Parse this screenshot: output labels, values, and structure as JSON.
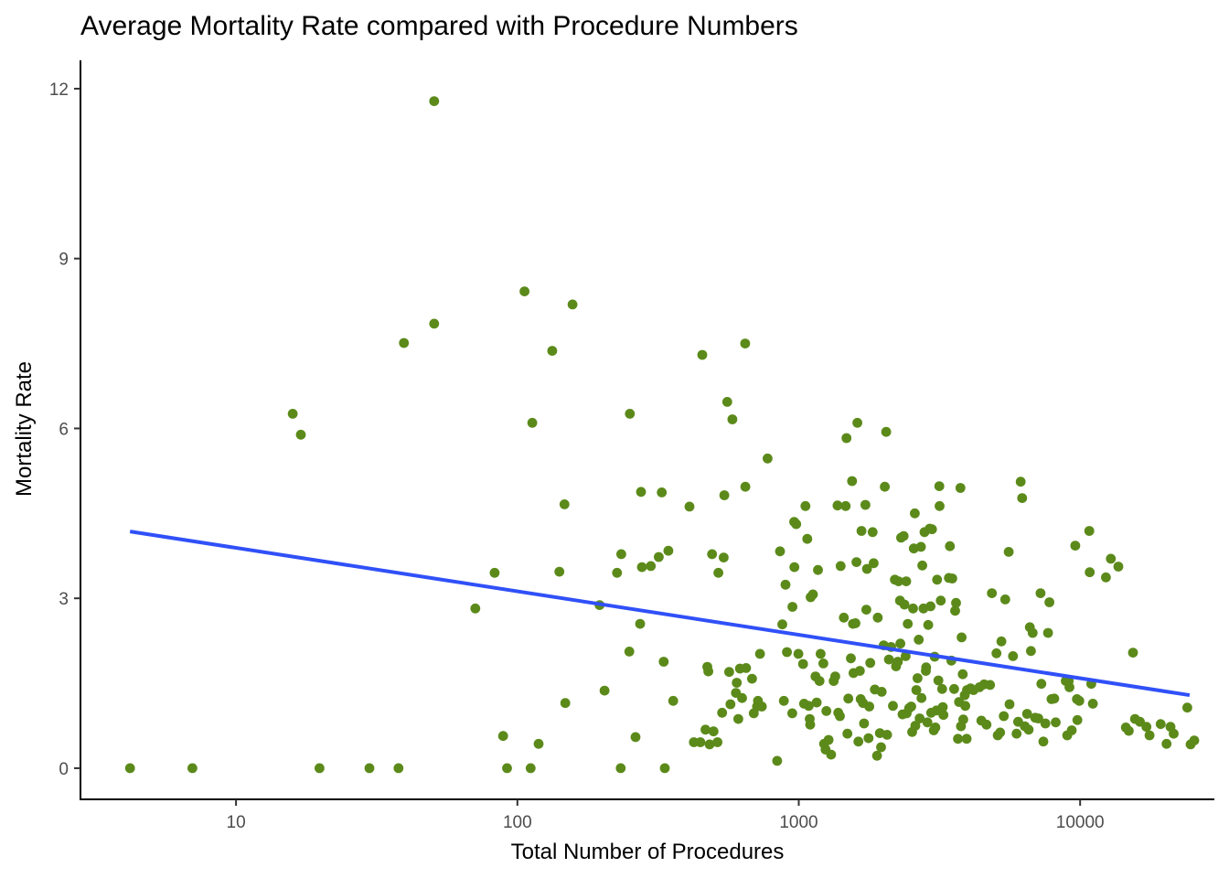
{
  "chart_data": {
    "type": "scatter",
    "title": "Average Mortality Rate compared with Procedure Numbers",
    "xlabel": "Total Number of Procedures",
    "ylabel": "Mortality Rate",
    "x_scale": "log10",
    "xlim": [
      2.8,
      30000
    ],
    "ylim": [
      -0.55,
      12.5
    ],
    "x_ticks": [
      {
        "value": 10,
        "label": "10"
      },
      {
        "value": 100,
        "label": "100"
      },
      {
        "value": 1000,
        "label": "1000"
      },
      {
        "value": 10000,
        "label": "10000"
      }
    ],
    "y_ticks": [
      {
        "value": 0,
        "label": "0"
      },
      {
        "value": 3,
        "label": "3"
      },
      {
        "value": 6,
        "label": "6"
      },
      {
        "value": 9,
        "label": "9"
      },
      {
        "value": 12,
        "label": "12"
      }
    ],
    "grid": false,
    "legend": "none",
    "point_color": "#5b8a1a",
    "line_color": "#3050f8",
    "trend_line": {
      "x": [
        4.2,
        24500
      ],
      "y": [
        4.18,
        1.29
      ]
    },
    "points": [
      [
        4.2,
        0
      ],
      [
        7,
        0
      ],
      [
        19.8,
        0
      ],
      [
        29.8,
        0
      ],
      [
        37.8,
        0
      ],
      [
        91.9,
        0
      ],
      [
        111.5,
        0
      ],
      [
        233,
        0
      ],
      [
        334,
        0
      ],
      [
        89,
        0.57
      ],
      [
        119,
        0.43
      ],
      [
        83,
        3.45
      ],
      [
        70.9,
        2.82
      ],
      [
        15.9,
        6.26
      ],
      [
        17,
        5.89
      ],
      [
        39.5,
        7.51
      ],
      [
        50.6,
        7.85
      ],
      [
        50.6,
        11.78
      ],
      [
        106,
        8.42
      ],
      [
        133,
        7.37
      ],
      [
        157,
        8.19
      ],
      [
        113,
        6.1
      ],
      [
        147,
        4.66
      ],
      [
        141,
        3.47
      ],
      [
        148,
        1.15
      ],
      [
        196,
        2.88
      ],
      [
        204,
        1.37
      ],
      [
        226,
        3.45
      ],
      [
        234,
        3.78
      ],
      [
        251,
        6.26
      ],
      [
        250,
        2.06
      ],
      [
        263,
        0.55
      ],
      [
        273,
        2.55
      ],
      [
        275,
        4.88
      ],
      [
        277,
        3.55
      ],
      [
        298,
        3.57
      ],
      [
        318,
        3.73
      ],
      [
        326,
        4.87
      ],
      [
        331,
        1.88
      ],
      [
        344,
        3.84
      ],
      [
        358,
        1.19
      ],
      [
        409,
        4.62
      ],
      [
        424,
        0.46
      ],
      [
        447,
        0.46
      ],
      [
        454,
        7.3
      ],
      [
        466,
        0.68
      ],
      [
        473,
        1.79
      ],
      [
        477,
        1.71
      ],
      [
        482,
        0.42
      ],
      [
        492,
        3.78
      ],
      [
        498,
        0.65
      ],
      [
        514,
        0.46
      ],
      [
        518,
        3.45
      ],
      [
        534,
        0.98
      ],
      [
        541,
        3.72
      ],
      [
        544,
        4.82
      ],
      [
        557,
        6.47
      ],
      [
        566,
        1.7
      ],
      [
        572,
        1.13
      ],
      [
        581,
        6.16
      ],
      [
        598,
        1.33
      ],
      [
        602,
        1.51
      ],
      [
        610,
        0.87
      ],
      [
        618,
        1.76
      ],
      [
        629,
        1.24
      ],
      [
        645,
        7.5
      ],
      [
        646,
        4.97
      ],
      [
        650,
        1.77
      ],
      [
        682,
        1.58
      ],
      [
        692,
        0.97
      ],
      [
        711,
        1.09
      ],
      [
        716,
        1.19
      ],
      [
        728,
        2.02
      ],
      [
        739,
        1.09
      ],
      [
        775,
        5.47
      ],
      [
        838,
        0.13
      ],
      [
        858,
        3.83
      ],
      [
        874,
        2.54
      ],
      [
        885,
        1.19
      ],
      [
        897,
        3.24
      ],
      [
        908,
        2.05
      ],
      [
        948,
        0.97
      ],
      [
        950,
        2.85
      ],
      [
        963,
        4.35
      ],
      [
        965,
        3.55
      ],
      [
        979,
        4.31
      ],
      [
        997,
        2.02
      ],
      [
        1036,
        1.84
      ],
      [
        1044,
        1.14
      ],
      [
        1056,
        4.63
      ],
      [
        1072,
        4.05
      ],
      [
        1085,
        1.1
      ],
      [
        1094,
        0.87
      ],
      [
        1098,
        0.77
      ],
      [
        1102,
        3.02
      ],
      [
        1123,
        3.07
      ],
      [
        1147,
        1.62
      ],
      [
        1158,
        1.16
      ],
      [
        1170,
        3.5
      ],
      [
        1185,
        1.54
      ],
      [
        1196,
        2.02
      ],
      [
        1223,
        1.85
      ],
      [
        1230,
        0.43
      ],
      [
        1245,
        0.33
      ],
      [
        1254,
        1.01
      ],
      [
        1276,
        0.5
      ],
      [
        1303,
        0.24
      ],
      [
        1331,
        1.54
      ],
      [
        1348,
        1.62
      ],
      [
        1373,
        4.64
      ],
      [
        1382,
        0.98
      ],
      [
        1400,
        0.92
      ],
      [
        1409,
        3.57
      ],
      [
        1446,
        2.66
      ],
      [
        1468,
        4.63
      ],
      [
        1478,
        5.83
      ],
      [
        1489,
        0.61
      ],
      [
        1500,
        1.23
      ],
      [
        1532,
        1.94
      ],
      [
        1547,
        5.07
      ],
      [
        1559,
        2.55
      ],
      [
        1566,
        1.68
      ],
      [
        1590,
        2.56
      ],
      [
        1604,
        3.64
      ],
      [
        1615,
        6.1
      ],
      [
        1629,
        0.47
      ],
      [
        1649,
        1.72
      ],
      [
        1660,
        1.22
      ],
      [
        1671,
        4.19
      ],
      [
        1692,
        1.15
      ],
      [
        1706,
        0.79
      ],
      [
        1726,
        4.65
      ],
      [
        1738,
        2.8
      ],
      [
        1748,
        3.52
      ],
      [
        1770,
        0.53
      ],
      [
        1781,
        1.09
      ],
      [
        1796,
        1.86
      ],
      [
        1830,
        4.17
      ],
      [
        1846,
        3.62
      ],
      [
        1864,
        1.39
      ],
      [
        1898,
        0.22
      ],
      [
        1909,
        2.66
      ],
      [
        1942,
        0.62
      ],
      [
        1961,
        0.37
      ],
      [
        1972,
        1.35
      ],
      [
        2004,
        2.17
      ],
      [
        2022,
        4.97
      ],
      [
        2045,
        5.94
      ],
      [
        2060,
        0.59
      ],
      [
        2091,
        1.92
      ],
      [
        2129,
        2.14
      ],
      [
        2161,
        1.1
      ],
      [
        2196,
        3.33
      ],
      [
        2218,
        1.8
      ],
      [
        2251,
        1.88
      ],
      [
        2263,
        3.3
      ],
      [
        2290,
        2.96
      ],
      [
        2297,
        2.2
      ],
      [
        2311,
        4.07
      ],
      [
        2339,
        0.95
      ],
      [
        2359,
        4.1
      ],
      [
        2376,
        2.89
      ],
      [
        2398,
        1.98
      ],
      [
        2410,
        3.3
      ],
      [
        2419,
        0.97
      ],
      [
        2440,
        2.55
      ],
      [
        2467,
        1.06
      ],
      [
        2510,
        1.09
      ],
      [
        2530,
        0.64
      ],
      [
        2548,
        2.82
      ],
      [
        2563,
        3.88
      ],
      [
        2584,
        4.5
      ],
      [
        2596,
        0.75
      ],
      [
        2617,
        1.38
      ],
      [
        2644,
        1.59
      ],
      [
        2670,
        2.27
      ],
      [
        2690,
        0.88
      ],
      [
        2718,
        3.91
      ],
      [
        2729,
        1.24
      ],
      [
        2749,
        3.58
      ],
      [
        2776,
        2.82
      ],
      [
        2798,
        4.17
      ],
      [
        2830,
        1.72
      ],
      [
        2837,
        1.78
      ],
      [
        2867,
        0.81
      ],
      [
        2886,
        2.53
      ],
      [
        2920,
        4.23
      ],
      [
        2940,
        2.86
      ],
      [
        2955,
        0.98
      ],
      [
        2976,
        4.22
      ],
      [
        3019,
        0.67
      ],
      [
        3041,
        1.97
      ],
      [
        3059,
        0.72
      ],
      [
        3087,
        1.02
      ],
      [
        3103,
        3.33
      ],
      [
        3136,
        1.55
      ],
      [
        3159,
        4.98
      ],
      [
        3167,
        4.63
      ],
      [
        3196,
        2.96
      ],
      [
        3233,
        1.4
      ],
      [
        3250,
        1.08
      ],
      [
        3268,
        0.94
      ],
      [
        3418,
        3.36
      ],
      [
        3445,
        3.92
      ],
      [
        3488,
        1.9
      ],
      [
        3514,
        3.35
      ],
      [
        3565,
        1.4
      ],
      [
        3595,
        2.78
      ],
      [
        3622,
        2.92
      ],
      [
        3679,
        0.52
      ],
      [
        3713,
        1.17
      ],
      [
        3755,
        4.95
      ],
      [
        3773,
        0.74
      ],
      [
        3791,
        2.31
      ],
      [
        3826,
        1.66
      ],
      [
        3844,
        0.86
      ],
      [
        3888,
        1.29
      ],
      [
        3906,
        1.1
      ],
      [
        3951,
        0.52
      ],
      [
        3963,
        1.38
      ],
      [
        4080,
        1.41
      ],
      [
        4178,
        1.38
      ],
      [
        4388,
        1.43
      ],
      [
        4456,
        0.84
      ],
      [
        4557,
        1.48
      ],
      [
        4647,
        0.77
      ],
      [
        4784,
        1.47
      ],
      [
        4858,
        3.09
      ],
      [
        5044,
        2.03
      ],
      [
        5097,
        0.58
      ],
      [
        5197,
        0.63
      ],
      [
        5250,
        2.24
      ],
      [
        5354,
        0.92
      ],
      [
        5420,
        2.98
      ],
      [
        5574,
        3.82
      ],
      [
        5614,
        1.13
      ],
      [
        5776,
        1.98
      ],
      [
        5946,
        0.61
      ],
      [
        6021,
        0.82
      ],
      [
        6149,
        5.06
      ],
      [
        6222,
        4.77
      ],
      [
        6361,
        0.74
      ],
      [
        6480,
        0.96
      ],
      [
        6563,
        0.68
      ],
      [
        6625,
        2.49
      ],
      [
        6684,
        2.07
      ],
      [
        6784,
        2.39
      ],
      [
        6924,
        0.89
      ],
      [
        7105,
        0.88
      ],
      [
        7233,
        3.09
      ],
      [
        7282,
        1.49
      ],
      [
        7402,
        0.47
      ],
      [
        7523,
        0.79
      ],
      [
        7689,
        2.39
      ],
      [
        7776,
        2.93
      ],
      [
        7911,
        1.22
      ],
      [
        8094,
        1.23
      ],
      [
        8188,
        0.81
      ],
      [
        8895,
        1.54
      ],
      [
        8999,
        0.58
      ],
      [
        9107,
        1.54
      ],
      [
        9165,
        1.43
      ],
      [
        9335,
        0.67
      ],
      [
        9613,
        3.93
      ],
      [
        9743,
        1.22
      ],
      [
        9776,
        0.85
      ],
      [
        9933,
        1.19
      ],
      [
        10781,
        4.19
      ],
      [
        10816,
        3.46
      ],
      [
        10957,
        1.49
      ],
      [
        11097,
        1.14
      ],
      [
        12348,
        3.37
      ],
      [
        12856,
        3.7
      ],
      [
        13676,
        3.56
      ],
      [
        14539,
        0.72
      ],
      [
        14894,
        0.66
      ],
      [
        15408,
        2.04
      ],
      [
        15674,
        0.87
      ],
      [
        16313,
        0.82
      ],
      [
        17206,
        0.73
      ],
      [
        17645,
        0.58
      ],
      [
        19339,
        0.78
      ],
      [
        20278,
        0.43
      ],
      [
        20943,
        0.73
      ],
      [
        21498,
        0.61
      ],
      [
        24036,
        1.07
      ],
      [
        24691,
        0.42
      ],
      [
        25439,
        0.49
      ]
    ]
  }
}
